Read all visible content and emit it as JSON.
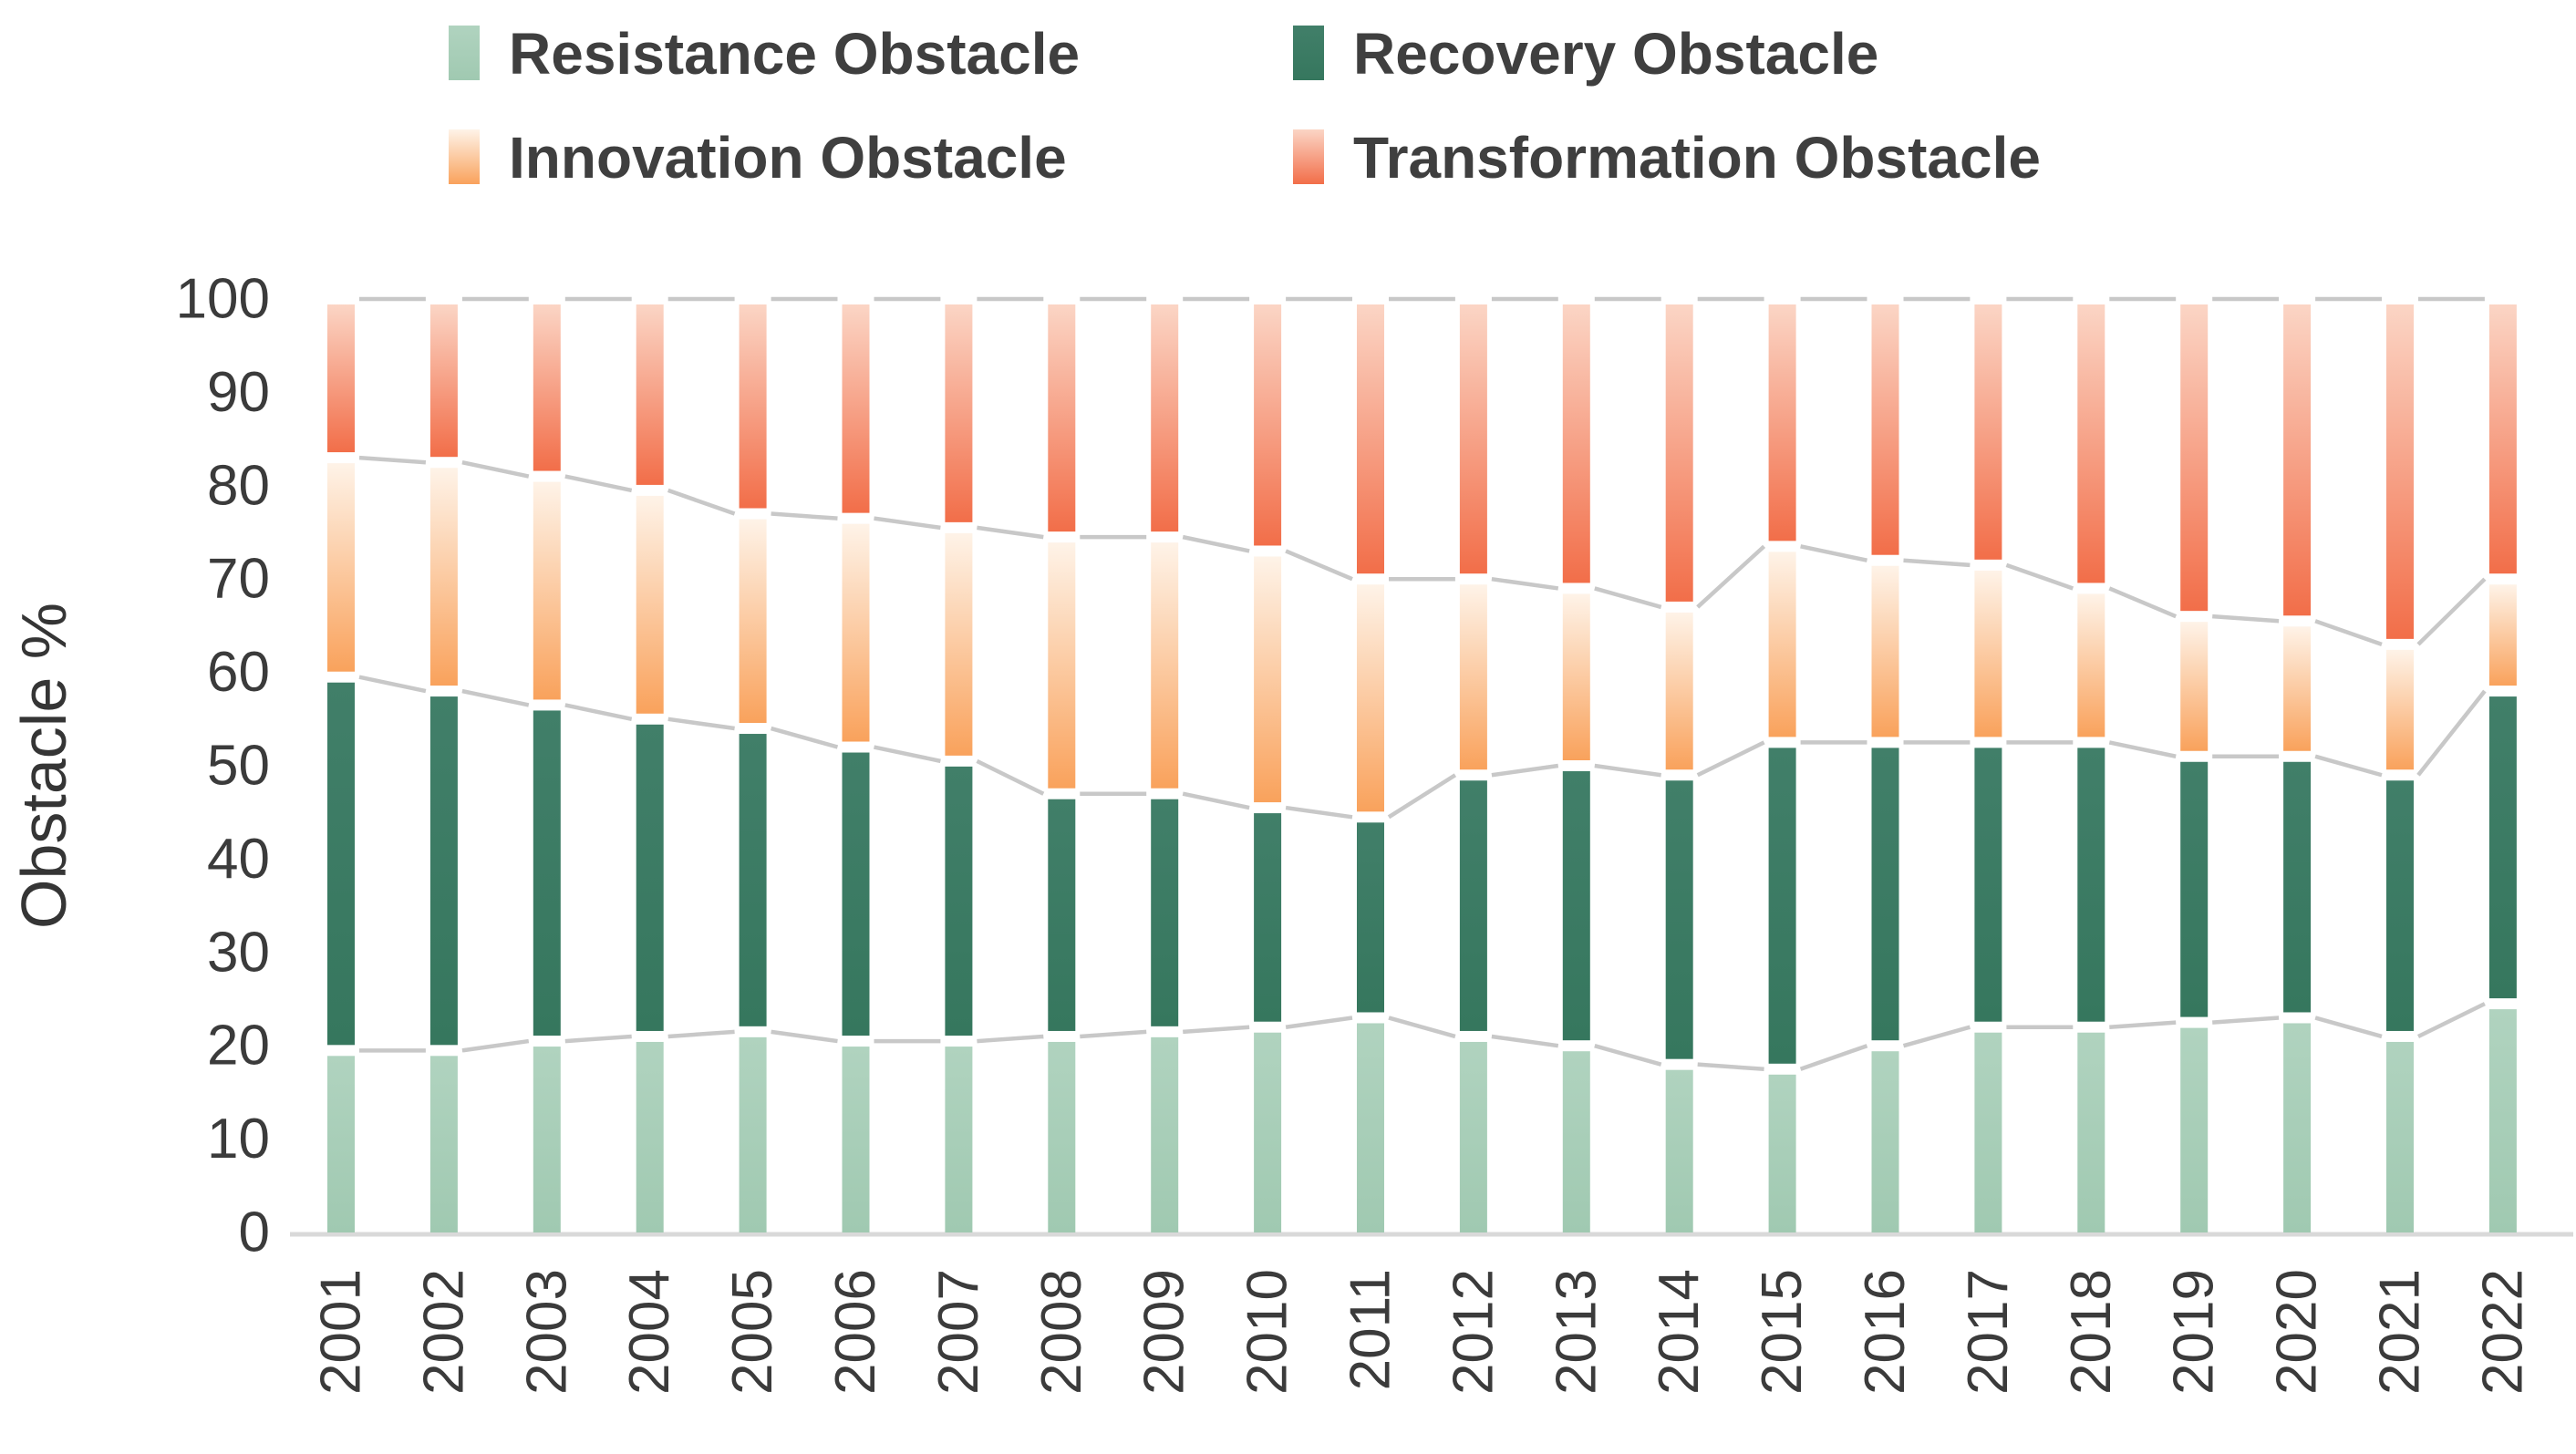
{
  "chart_data": {
    "type": "bar",
    "stacked": true,
    "title": "",
    "xlabel": "",
    "ylabel": "Obstacle %",
    "ylim": [
      0,
      100
    ],
    "grid": false,
    "legend_position": "top",
    "connector_lines": true,
    "categories": [
      "2001",
      "2002",
      "2003",
      "2004",
      "2005",
      "2006",
      "2007",
      "2008",
      "2009",
      "2010",
      "2011",
      "2012",
      "2013",
      "2014",
      "2015",
      "2016",
      "2017",
      "2018",
      "2019",
      "2020",
      "2021",
      "2022"
    ],
    "series": [
      {
        "name": "Resistance Obstacle",
        "color_top": "#B0D3BF",
        "color_bottom": "#A0C9B1",
        "values": [
          19.5,
          19.5,
          20.5,
          21,
          21.5,
          20.5,
          20.5,
          21,
          21.5,
          22,
          23,
          21,
          20,
          18,
          17.5,
          20,
          22,
          22,
          22.5,
          23,
          21,
          24.5
        ]
      },
      {
        "name": "Recovery Obstacle",
        "color_top": "#417F69",
        "color_bottom": "#36775E",
        "values": [
          40,
          38.5,
          36,
          34,
          32.5,
          31.5,
          30,
          26,
          25.5,
          23.5,
          21.5,
          28,
          30,
          31,
          35,
          32.5,
          30.5,
          30.5,
          28.5,
          28,
          28,
          33.5
        ]
      },
      {
        "name": "Innovation Obstacle",
        "color_top": "#FEF3E8",
        "color_bottom": "#F9A25C",
        "values": [
          23.5,
          24.5,
          24.5,
          24.5,
          23,
          24.5,
          25,
          27.5,
          27.5,
          27.5,
          25.5,
          21,
          19,
          18,
          21,
          19.5,
          19,
          16.5,
          15,
          14.5,
          14,
          12
        ]
      },
      {
        "name": "Transformation Obstacle",
        "color_top": "#FBD5C5",
        "color_bottom": "#F26E49",
        "values": [
          17,
          17.5,
          19,
          20.5,
          23,
          23.5,
          24.5,
          25.5,
          25.5,
          27,
          30,
          30,
          31,
          33,
          26.5,
          28,
          28.5,
          31,
          34,
          34.5,
          37,
          30
        ]
      }
    ]
  },
  "y_axis": {
    "title": "Obstacle %",
    "ticks": [
      "0",
      "10",
      "20",
      "30",
      "40",
      "50",
      "60",
      "70",
      "80",
      "90",
      "100"
    ]
  },
  "legend": {
    "items": [
      {
        "label": "Resistance Obstacle"
      },
      {
        "label": "Recovery Obstacle"
      },
      {
        "label": "Innovation Obstacle"
      },
      {
        "label": "Transformation Obstacle"
      }
    ]
  },
  "colors": {
    "connector_line": "#C8C8C8",
    "axis_line": "#D9D9D9",
    "text": "#3B3B3B"
  }
}
